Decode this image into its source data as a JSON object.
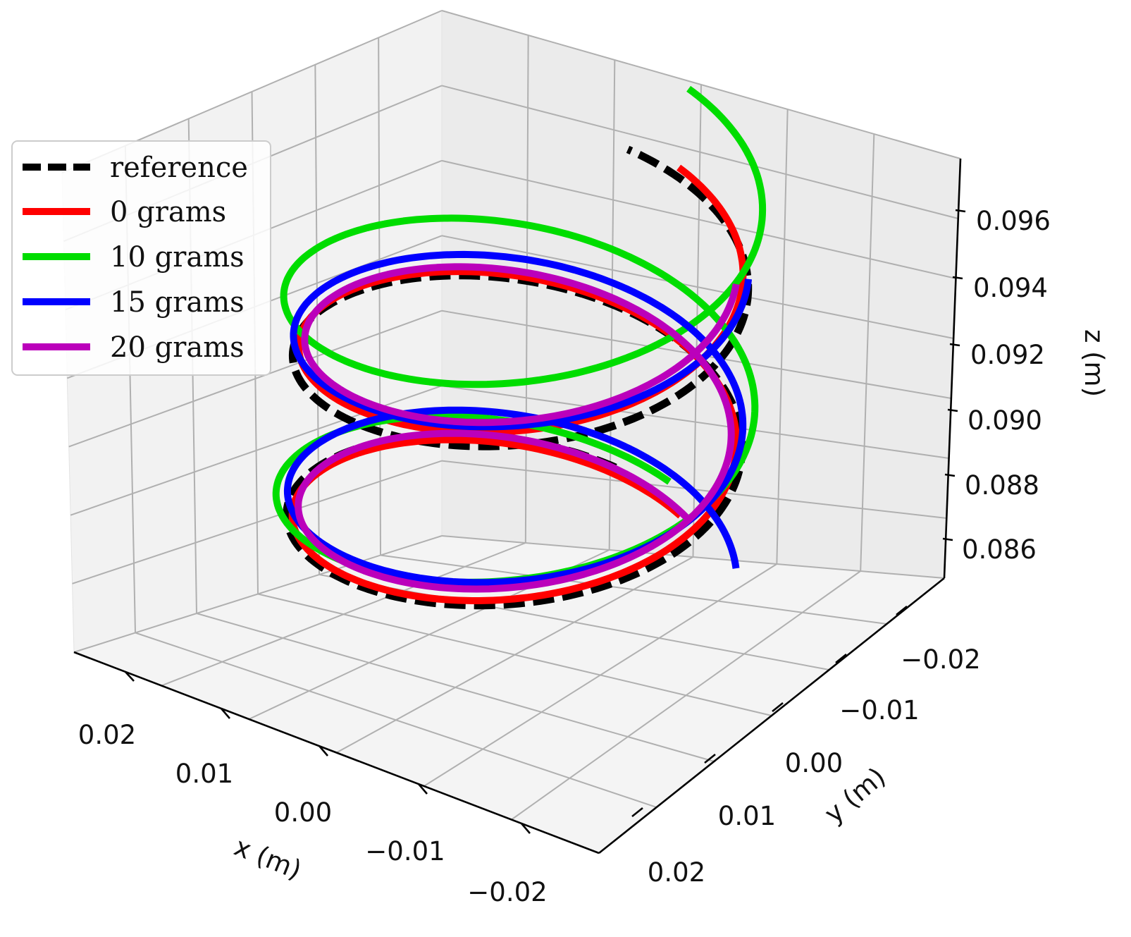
{
  "chart_data": {
    "type": "line",
    "projection": "3d",
    "title": "",
    "xlabel": "x (m)",
    "ylabel": "y (m)",
    "zlabel": "z (m)",
    "xlim": [
      -0.025,
      0.025
    ],
    "ylim": [
      -0.025,
      0.025
    ],
    "zlim": [
      0.085,
      0.097
    ],
    "x_ticks": [
      "0.02",
      "0.01",
      "0.00",
      "−0.01",
      "−0.02"
    ],
    "y_ticks": [
      "−0.02",
      "−0.01",
      "0.00",
      "0.01",
      "0.02"
    ],
    "z_ticks": [
      "0.096",
      "0.094",
      "0.092",
      "0.090",
      "0.088",
      "0.086"
    ],
    "grid": true,
    "legend_position": "upper-left",
    "series": [
      {
        "name": "reference",
        "color": "#000000",
        "style": "dashed",
        "radius": 0.02,
        "turns": 2,
        "z_start": 0.0862,
        "z_end": 0.0953,
        "phase_start": 0.1,
        "phase_end": 0.1
      },
      {
        "name": "0 grams",
        "color": "#ff0000",
        "style": "solid",
        "radius": 0.0195,
        "turns": 2,
        "z_start": 0.0858,
        "z_end": 0.0955,
        "phase_start": -0.3,
        "phase_end": -0.2
      },
      {
        "name": "10 grams",
        "color": "#00dd00",
        "style": "solid",
        "radius": 0.021,
        "turns": 2.1,
        "z_start": 0.0862,
        "z_end": 0.0975,
        "phase_start": -0.15,
        "phase_end": -0.8
      },
      {
        "name": "15 grams",
        "color": "#0000ff",
        "style": "solid",
        "radius": 0.02,
        "turns": 2,
        "z_start": 0.0862,
        "z_end": 0.095,
        "phase_start": -0.9,
        "phase_end": -1.05
      },
      {
        "name": "20 grams",
        "color": "#bb00bb",
        "style": "solid",
        "radius": 0.019,
        "turns": 2,
        "z_start": 0.086,
        "z_end": 0.095,
        "phase_start": -0.4,
        "phase_end": -1.1
      }
    ]
  }
}
